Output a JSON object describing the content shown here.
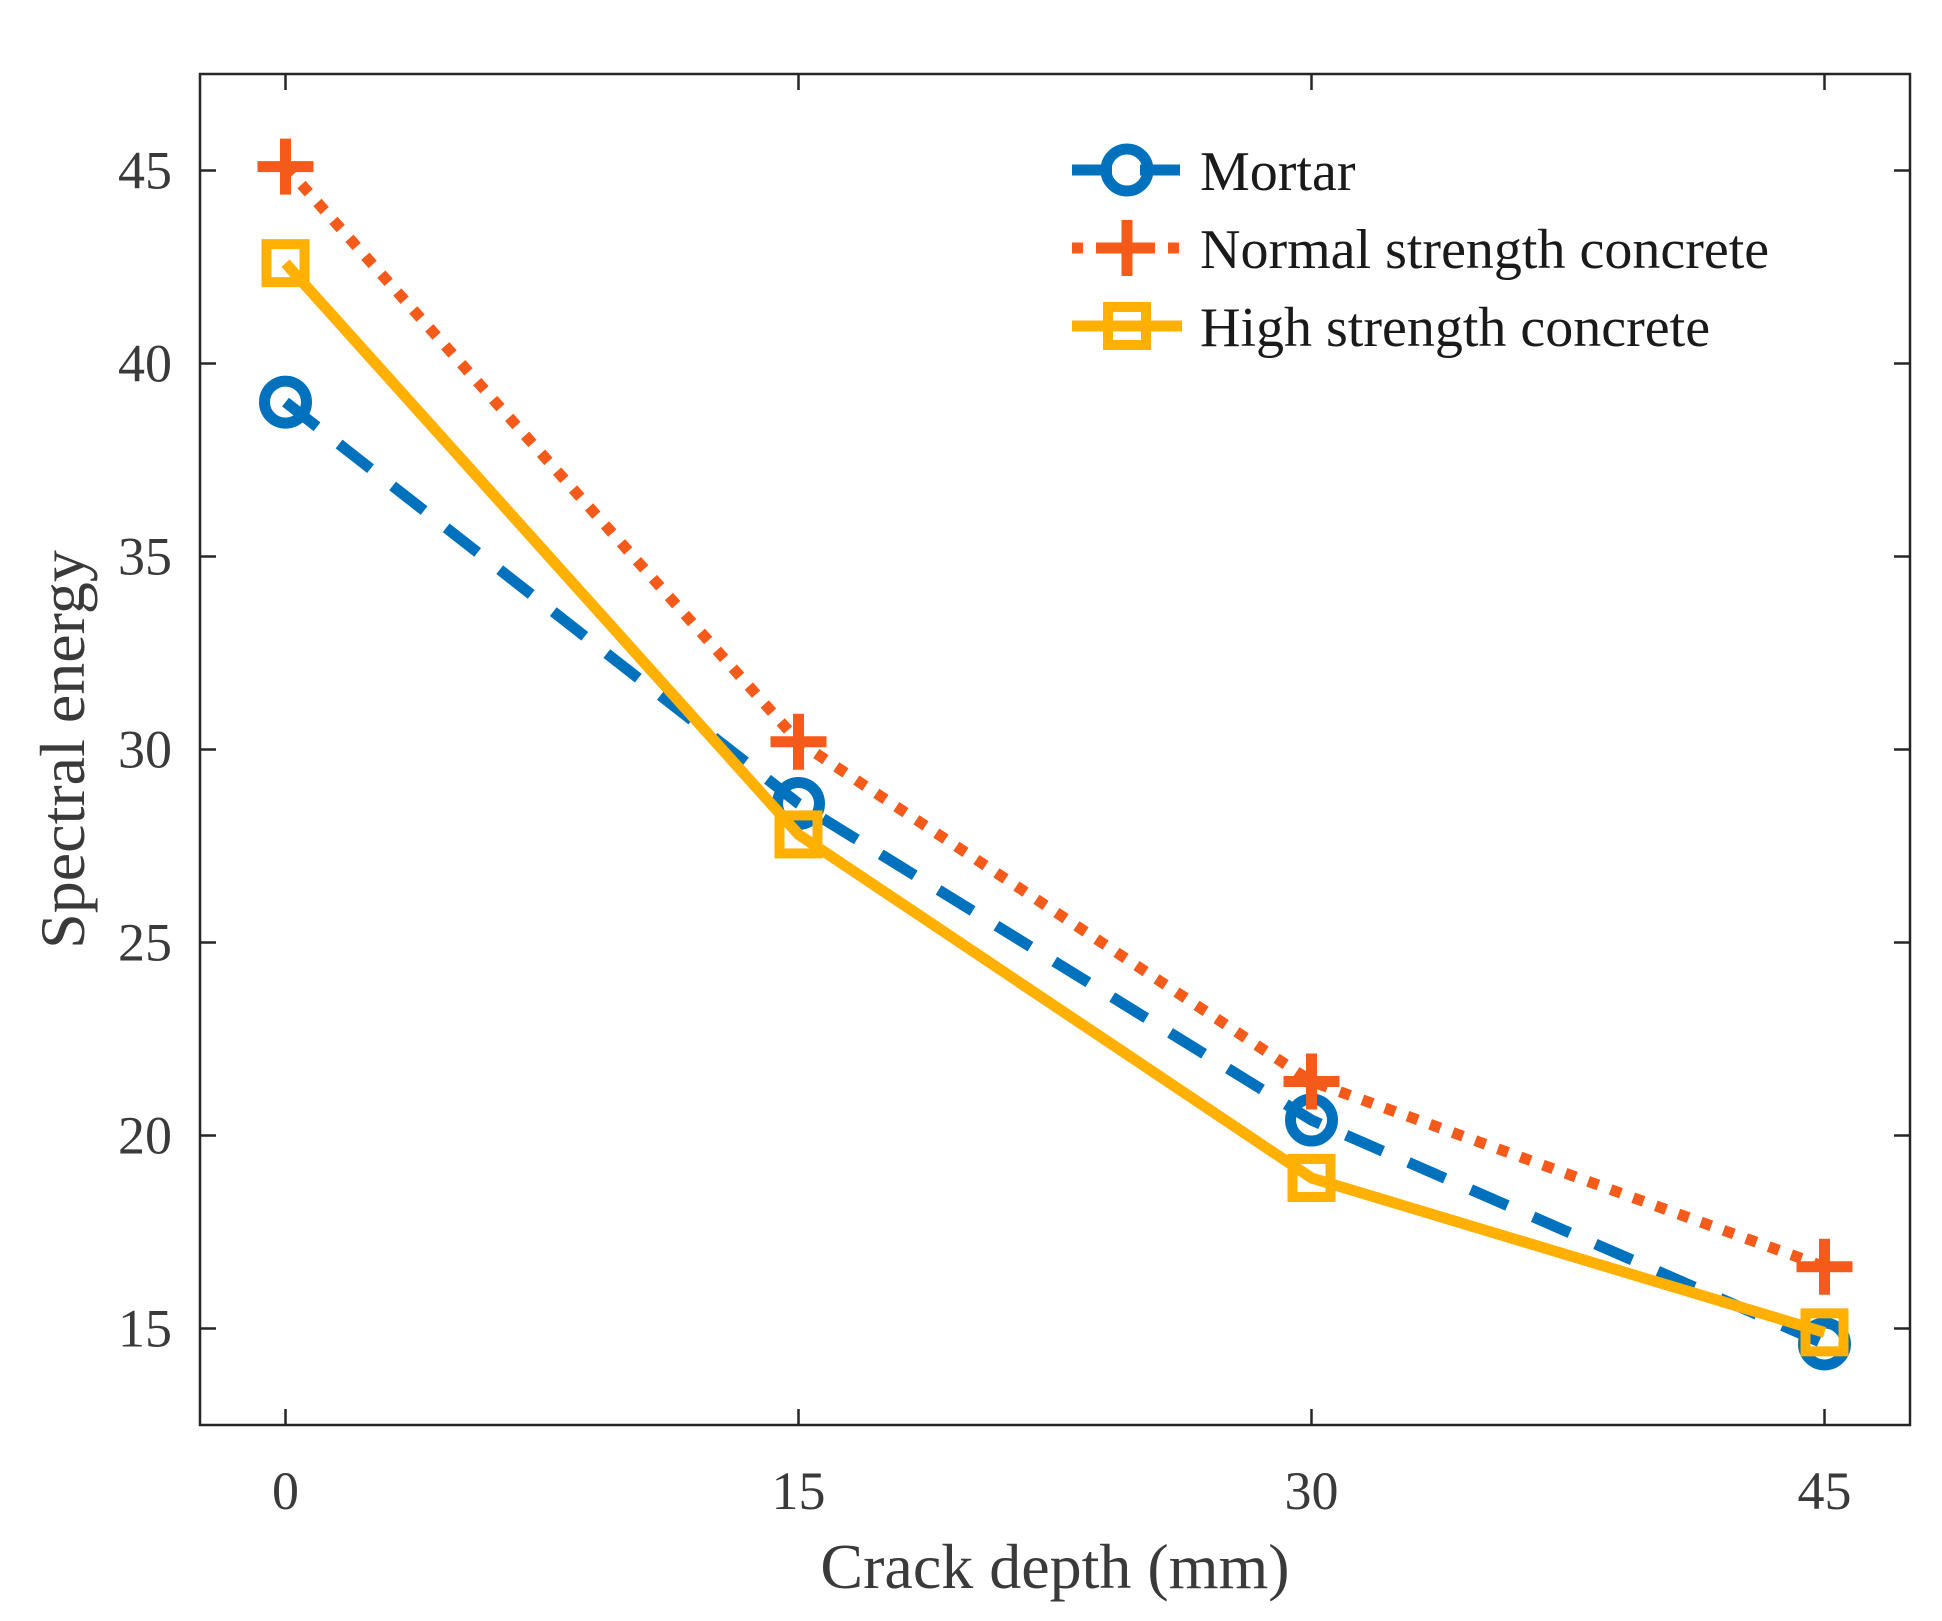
{
  "chart_data": {
    "type": "line",
    "title": "",
    "xlabel": "Crack depth (mm)",
    "ylabel": "Spectral energy",
    "x": [
      0,
      15,
      30,
      45
    ],
    "xticks": [
      "0",
      "15",
      "30",
      "45"
    ],
    "yticks": [
      "15",
      "20",
      "25",
      "30",
      "35",
      "40",
      "45"
    ],
    "xlim": [
      -2.5,
      47.5
    ],
    "ylim": [
      12.5,
      47.5
    ],
    "grid": false,
    "legend_position": "top-right",
    "series": [
      {
        "name": "Mortar",
        "values": [
          39.0,
          28.6,
          20.4,
          14.6
        ],
        "color": "#0072BD",
        "line": "dashed",
        "marker": "circle"
      },
      {
        "name": "Normal strength concrete",
        "values": [
          45.1,
          30.2,
          21.4,
          16.6
        ],
        "color": "#F45B1A",
        "line": "dotted",
        "marker": "plus"
      },
      {
        "name": "High strength concrete",
        "values": [
          42.6,
          27.8,
          18.9,
          14.9
        ],
        "color": "#FFB000",
        "line": "solid",
        "marker": "square"
      }
    ]
  }
}
